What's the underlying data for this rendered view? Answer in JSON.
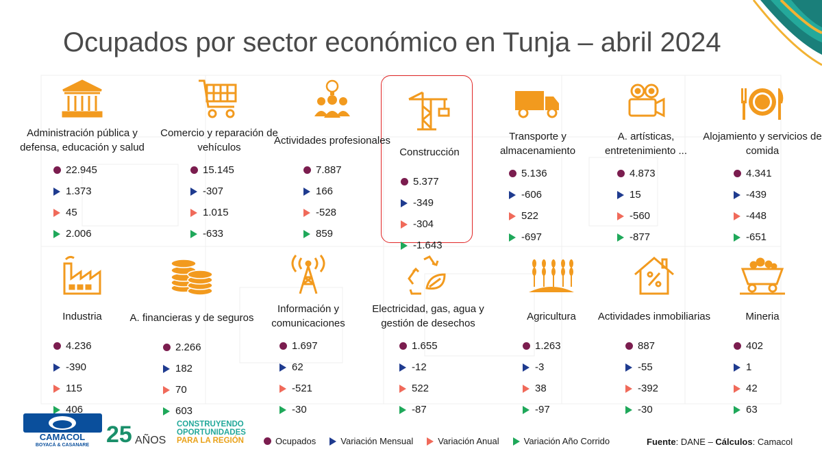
{
  "title": "Ocupados por sector económico en Tunja – abril 2024",
  "colors": {
    "icon": "#f29a1e",
    "ocupados": "#7b1d4f",
    "mensual": "#1f3b8f",
    "anual": "#f06a5a",
    "corrido": "#1fa85a",
    "highlight": "#e02424"
  },
  "sectors": [
    {
      "name": "Administración pública y defensa, educación y salud",
      "icon": "government-building-icon",
      "values": [
        "22.945",
        "1.373",
        "45",
        "2.006"
      ]
    },
    {
      "name": "Comercio y reparación de vehículos",
      "icon": "shopping-cart-icon",
      "values": [
        "15.145",
        "-307",
        "1.015",
        "-633"
      ]
    },
    {
      "name": "Actividades profesionales",
      "icon": "team-idea-icon",
      "values": [
        "7.887",
        "166",
        "-528",
        "859"
      ]
    },
    {
      "name": "Construcción",
      "icon": "crane-icon",
      "values": [
        "5.377",
        "-349",
        "-304",
        "-1.643"
      ]
    },
    {
      "name": "Transporte y almacenamiento",
      "icon": "truck-icon",
      "values": [
        "5.136",
        "-606",
        "522",
        "-697"
      ]
    },
    {
      "name": "A. artísticas, entretenimiento ...",
      "icon": "film-camera-icon",
      "values": [
        "4.873",
        "15",
        "-560",
        "-877"
      ]
    },
    {
      "name": "Alojamiento y servicios de comida",
      "icon": "plate-cutlery-icon",
      "values": [
        "4.341",
        "-439",
        "-448",
        "-651"
      ]
    },
    {
      "name": "Industria",
      "icon": "factory-icon",
      "values": [
        "4.236",
        "-390",
        "115",
        "406"
      ]
    },
    {
      "name": "A. financieras y de seguros",
      "icon": "coins-icon",
      "values": [
        "2.266",
        "182",
        "70",
        "603"
      ]
    },
    {
      "name": "Información y comunicaciones",
      "icon": "antenna-tower-icon",
      "values": [
        "1.697",
        "62",
        "-521",
        "-30"
      ]
    },
    {
      "name": "Electricidad, gas, agua y gestión de desechos",
      "icon": "recycle-leaf-icon",
      "values": [
        "1.655",
        "-12",
        "522",
        "-87"
      ]
    },
    {
      "name": "Agricultura",
      "icon": "wheat-icon",
      "values": [
        "1.263",
        "-3",
        "38",
        "-97"
      ]
    },
    {
      "name": "Actividades inmobiliarias",
      "icon": "house-percent-icon",
      "values": [
        "887",
        "-55",
        "-392",
        "-30"
      ]
    },
    {
      "name": "Mineria",
      "icon": "mine-cart-icon",
      "values": [
        "402",
        "1",
        "42",
        "63"
      ]
    }
  ],
  "legend": [
    "Ocupados",
    "Variación Mensual",
    "Variación Anual",
    "Variación Año Corrido"
  ],
  "source": {
    "label1": "Fuente",
    "text1": ": DANE – ",
    "label2": "Cálculos",
    "text2": ": Camacol"
  },
  "logo": {
    "name": "CAMACOL",
    "sub": "BOYACÁ & CASANARE",
    "years": "25",
    "years_word": "AÑOS"
  },
  "slogan": [
    "CONSTRUYENDO",
    "OPORTUNIDADES",
    "PARA LA REGIÓN"
  ]
}
